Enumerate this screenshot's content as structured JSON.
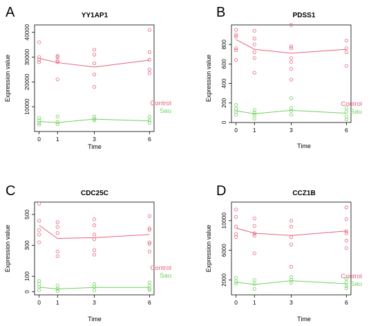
{
  "colors": {
    "control": "#e8607a",
    "sau": "#6fd25c"
  },
  "chart_data": [
    {
      "type": "scatter",
      "panel": "A",
      "title": "YY1AP1",
      "xlabel": "Time",
      "ylabel": "Expression value",
      "x_ticks": [
        0,
        1,
        3,
        6
      ],
      "y_ticks": [
        10000,
        20000,
        30000,
        40000
      ],
      "xlim": [
        -0.25,
        6.25
      ],
      "ylim": [
        0,
        43000
      ],
      "legend_position": "bottom-right",
      "series": [
        {
          "name": "Control",
          "color": "#e8607a",
          "points": [
            [
              0,
              36000
            ],
            [
              0,
              30000
            ],
            [
              0,
              29000
            ],
            [
              0,
              28000
            ],
            [
              1,
              30500
            ],
            [
              1,
              30000
            ],
            [
              1,
              28500
            ],
            [
              1,
              28000
            ],
            [
              1,
              21000
            ],
            [
              3,
              33000
            ],
            [
              3,
              31000
            ],
            [
              3,
              27500
            ],
            [
              3,
              23000
            ],
            [
              3,
              18000
            ],
            [
              6,
              41000
            ],
            [
              6,
              32000
            ],
            [
              6,
              29000
            ],
            [
              6,
              25000
            ],
            [
              6,
              23500
            ]
          ],
          "mean_line": [
            [
              0,
              29500
            ],
            [
              1,
              27800
            ],
            [
              3,
              26000
            ],
            [
              6,
              28800
            ]
          ]
        },
        {
          "name": "Sau",
          "color": "#6fd25c",
          "points": [
            [
              0,
              5500
            ],
            [
              0,
              4500
            ],
            [
              0,
              3500
            ],
            [
              0,
              2800
            ],
            [
              1,
              6000
            ],
            [
              1,
              3800
            ],
            [
              1,
              3000
            ],
            [
              3,
              6000
            ],
            [
              3,
              5000
            ],
            [
              3,
              4500
            ],
            [
              6,
              6000
            ],
            [
              6,
              4500
            ],
            [
              6,
              3500
            ]
          ],
          "mean_line": [
            [
              0,
              4000
            ],
            [
              1,
              3600
            ],
            [
              3,
              5000
            ],
            [
              6,
              4300
            ]
          ]
        }
      ]
    },
    {
      "type": "scatter",
      "panel": "B",
      "title": "PDSS1",
      "xlabel": "Time",
      "ylabel": "Expression value",
      "x_ticks": [
        0,
        1,
        3,
        6
      ],
      "y_ticks": [
        0,
        200,
        400,
        600,
        800
      ],
      "xlim": [
        -0.25,
        6.25
      ],
      "ylim": [
        0,
        1000
      ],
      "legend_position": "bottom-right",
      "series": [
        {
          "name": "Control",
          "color": "#e8607a",
          "points": [
            [
              0,
              950
            ],
            [
              0,
              900
            ],
            [
              0,
              880
            ],
            [
              0,
              760
            ],
            [
              0,
              740
            ],
            [
              0,
              640
            ],
            [
              1,
              940
            ],
            [
              1,
              860
            ],
            [
              1,
              800
            ],
            [
              1,
              720
            ],
            [
              1,
              660
            ],
            [
              1,
              510
            ],
            [
              3,
              1000
            ],
            [
              3,
              780
            ],
            [
              3,
              760
            ],
            [
              3,
              660
            ],
            [
              3,
              620
            ],
            [
              3,
              550
            ],
            [
              3,
              440
            ],
            [
              6,
              840
            ],
            [
              6,
              760
            ],
            [
              6,
              720
            ],
            [
              6,
              580
            ]
          ],
          "mean_line": [
            [
              0,
              850
            ],
            [
              1,
              750
            ],
            [
              3,
              710
            ],
            [
              6,
              750
            ]
          ]
        },
        {
          "name": "Sau",
          "color": "#6fd25c",
          "points": [
            [
              0,
              180
            ],
            [
              0,
              140
            ],
            [
              0,
              110
            ],
            [
              0,
              80
            ],
            [
              1,
              130
            ],
            [
              1,
              100
            ],
            [
              1,
              80
            ],
            [
              1,
              40
            ],
            [
              3,
              250
            ],
            [
              3,
              150
            ],
            [
              3,
              120
            ],
            [
              3,
              80
            ],
            [
              6,
              150
            ],
            [
              6,
              110
            ],
            [
              6,
              60
            ],
            [
              6,
              30
            ]
          ],
          "mean_line": [
            [
              0,
              120
            ],
            [
              1,
              90
            ],
            [
              3,
              125
            ],
            [
              6,
              95
            ]
          ]
        }
      ]
    },
    {
      "type": "scatter",
      "panel": "C",
      "title": "CDC25C",
      "xlabel": "Time",
      "ylabel": "Expression value",
      "x_ticks": [
        0,
        1,
        3,
        6
      ],
      "y_ticks": [
        0,
        100,
        300,
        500
      ],
      "xlim": [
        -0.25,
        6.25
      ],
      "ylim": [
        -20,
        580
      ],
      "legend_position": "bottom-right",
      "series": [
        {
          "name": "Control",
          "color": "#e8607a",
          "points": [
            [
              0,
              570
            ],
            [
              0,
              460
            ],
            [
              0,
              400
            ],
            [
              0,
              370
            ],
            [
              0,
              320
            ],
            [
              1,
              450
            ],
            [
              1,
              420
            ],
            [
              1,
              380
            ],
            [
              1,
              260
            ],
            [
              1,
              230
            ],
            [
              3,
              470
            ],
            [
              3,
              430
            ],
            [
              3,
              370
            ],
            [
              3,
              340
            ],
            [
              3,
              270
            ],
            [
              3,
              240
            ],
            [
              6,
              490
            ],
            [
              6,
              410
            ],
            [
              6,
              400
            ],
            [
              6,
              320
            ],
            [
              6,
              310
            ],
            [
              6,
              260
            ]
          ],
          "mean_line": [
            [
              0,
              430
            ],
            [
              1,
              345
            ],
            [
              3,
              350
            ],
            [
              6,
              370
            ]
          ]
        },
        {
          "name": "Sau",
          "color": "#6fd25c",
          "points": [
            [
              0,
              70
            ],
            [
              0,
              50
            ],
            [
              0,
              30
            ],
            [
              0,
              10
            ],
            [
              1,
              40
            ],
            [
              1,
              20
            ],
            [
              1,
              5
            ],
            [
              3,
              50
            ],
            [
              3,
              30
            ],
            [
              3,
              10
            ],
            [
              6,
              60
            ],
            [
              6,
              40
            ],
            [
              6,
              20
            ],
            [
              6,
              10
            ]
          ],
          "mean_line": [
            [
              0,
              30
            ],
            [
              1,
              18
            ],
            [
              3,
              28
            ],
            [
              6,
              28
            ]
          ]
        }
      ]
    },
    {
      "type": "scatter",
      "panel": "D",
      "title": "CCZ1B",
      "xlabel": "Time",
      "ylabel": "Expression value",
      "x_ticks": [
        0,
        1,
        3,
        6
      ],
      "y_ticks": [
        2000,
        6000,
        10000
      ],
      "xlim": [
        -0.25,
        6.25
      ],
      "ylim": [
        0,
        12500
      ],
      "legend_position": "bottom-right",
      "series": [
        {
          "name": "Control",
          "color": "#e8607a",
          "points": [
            [
              0,
              11500
            ],
            [
              0,
              10500
            ],
            [
              0,
              9200
            ],
            [
              0,
              8200
            ],
            [
              0,
              7800
            ],
            [
              1,
              10300
            ],
            [
              1,
              9300
            ],
            [
              1,
              8300
            ],
            [
              1,
              8000
            ],
            [
              1,
              5600
            ],
            [
              3,
              10000
            ],
            [
              3,
              9200
            ],
            [
              3,
              7800
            ],
            [
              3,
              6800
            ],
            [
              3,
              3800
            ],
            [
              6,
              11800
            ],
            [
              6,
              10200
            ],
            [
              6,
              8600
            ],
            [
              6,
              8300
            ],
            [
              6,
              7300
            ],
            [
              6,
              6300
            ]
          ],
          "mean_line": [
            [
              0,
              9000
            ],
            [
              1,
              8300
            ],
            [
              3,
              8000
            ],
            [
              6,
              8600
            ]
          ]
        },
        {
          "name": "Sau",
          "color": "#6fd25c",
          "points": [
            [
              0,
              2300
            ],
            [
              0,
              1800
            ],
            [
              0,
              1500
            ],
            [
              1,
              2000
            ],
            [
              1,
              1500
            ],
            [
              1,
              800
            ],
            [
              3,
              2400
            ],
            [
              3,
              2000
            ],
            [
              3,
              1600
            ],
            [
              6,
              2200
            ],
            [
              6,
              1700
            ],
            [
              6,
              1200
            ],
            [
              6,
              900
            ]
          ],
          "mean_line": [
            [
              0,
              1700
            ],
            [
              1,
              1400
            ],
            [
              3,
              1900
            ],
            [
              6,
              1500
            ]
          ]
        }
      ]
    }
  ]
}
